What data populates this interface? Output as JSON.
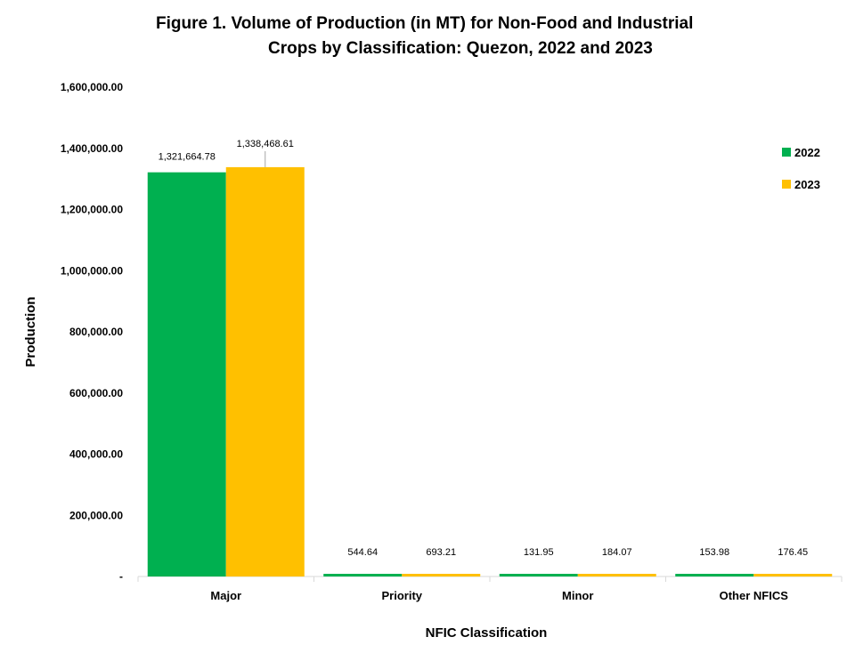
{
  "chart_data": {
    "type": "bar",
    "title_lines": [
      "Figure 1. Volume of Production (in MT) for Non-Food and Industrial",
      "Crops by Classification: Quezon, 2022 and 2023"
    ],
    "xlabel": "NFIC Classification",
    "ylabel": "Production",
    "categories": [
      "Major",
      "Priority",
      "Minor",
      "Other NFICS"
    ],
    "series": [
      {
        "name": "2022",
        "color": "#00b050",
        "values": [
          1321664.78,
          544.64,
          131.95,
          153.98
        ],
        "labels": [
          "1,321,664.78",
          "544.64",
          "131.95",
          "153.98"
        ]
      },
      {
        "name": "2023",
        "color": "#ffc000",
        "values": [
          1338468.61,
          693.21,
          184.07,
          176.45
        ],
        "labels": [
          "1,338,468.61",
          "693.21",
          "184.07",
          "176.45"
        ]
      }
    ],
    "ylim": [
      0,
      1600000
    ],
    "yticks": [
      0,
      200000,
      400000,
      600000,
      800000,
      1000000,
      1200000,
      1400000,
      1600000
    ],
    "ytick_labels": [
      "-",
      "200,000.00",
      "400,000.00",
      "600,000.00",
      "800,000.00",
      "1,000,000.00",
      "1,200,000.00",
      "1,400,000.00",
      "1,600,000.00"
    ],
    "grid": false,
    "legend": "right"
  }
}
